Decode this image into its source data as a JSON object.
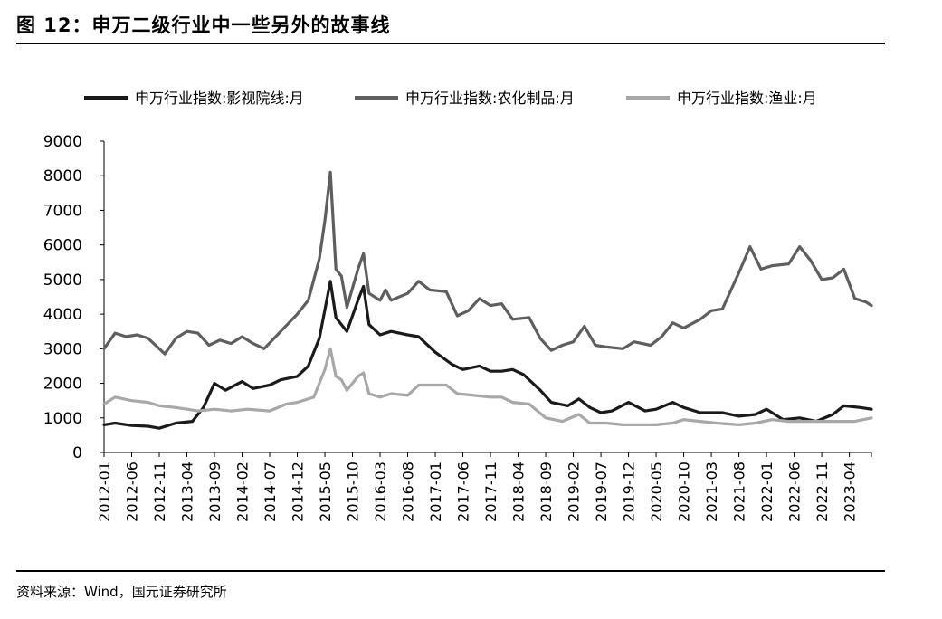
{
  "figure": {
    "title": "图 12：申万二级行业中一些另外的故事线",
    "source": "资料来源：Wind，国元证券研究所"
  },
  "chart_data": {
    "type": "line",
    "title": "",
    "xlabel": "",
    "ylabel": "",
    "ylim": [
      0,
      9000
    ],
    "yticks": [
      0,
      1000,
      2000,
      3000,
      4000,
      5000,
      6000,
      7000,
      8000,
      9000
    ],
    "x_start": "2012-01",
    "x_end": "2023-08",
    "xticks": [
      "2012-01",
      "2012-06",
      "2012-11",
      "2013-04",
      "2013-09",
      "2014-02",
      "2014-07",
      "2014-12",
      "2015-05",
      "2015-10",
      "2016-03",
      "2016-08",
      "2017-01",
      "2017-06",
      "2017-11",
      "2018-04",
      "2018-09",
      "2019-02",
      "2019-07",
      "2019-12",
      "2020-05",
      "2020-10",
      "2021-03",
      "2021-08",
      "2022-01",
      "2022-06",
      "2022-11",
      "2023-04"
    ],
    "grid": false,
    "legend": "top",
    "series": [
      {
        "name": "申万行业指数:影视院线:月",
        "color": "#1a1a1a",
        "points": [
          [
            "2012-01",
            800
          ],
          [
            "2012-03",
            850
          ],
          [
            "2012-06",
            780
          ],
          [
            "2012-09",
            760
          ],
          [
            "2012-11",
            700
          ],
          [
            "2013-02",
            850
          ],
          [
            "2013-05",
            900
          ],
          [
            "2013-07",
            1300
          ],
          [
            "2013-09",
            2000
          ],
          [
            "2013-11",
            1800
          ],
          [
            "2014-02",
            2050
          ],
          [
            "2014-04",
            1850
          ],
          [
            "2014-07",
            1950
          ],
          [
            "2014-09",
            2100
          ],
          [
            "2014-12",
            2200
          ],
          [
            "2015-02",
            2500
          ],
          [
            "2015-04",
            3300
          ],
          [
            "2015-06",
            4950
          ],
          [
            "2015-07",
            3900
          ],
          [
            "2015-08",
            3700
          ],
          [
            "2015-09",
            3500
          ],
          [
            "2015-11",
            4400
          ],
          [
            "2015-12",
            4800
          ],
          [
            "2016-01",
            3700
          ],
          [
            "2016-03",
            3400
          ],
          [
            "2016-05",
            3500
          ],
          [
            "2016-08",
            3400
          ],
          [
            "2016-10",
            3350
          ],
          [
            "2017-01",
            2900
          ],
          [
            "2017-04",
            2550
          ],
          [
            "2017-06",
            2400
          ],
          [
            "2017-09",
            2500
          ],
          [
            "2017-11",
            2350
          ],
          [
            "2018-01",
            2350
          ],
          [
            "2018-03",
            2400
          ],
          [
            "2018-05",
            2250
          ],
          [
            "2018-08",
            1800
          ],
          [
            "2018-10",
            1450
          ],
          [
            "2019-01",
            1350
          ],
          [
            "2019-03",
            1550
          ],
          [
            "2019-05",
            1300
          ],
          [
            "2019-07",
            1150
          ],
          [
            "2019-09",
            1200
          ],
          [
            "2019-12",
            1450
          ],
          [
            "2020-03",
            1200
          ],
          [
            "2020-05",
            1250
          ],
          [
            "2020-08",
            1450
          ],
          [
            "2020-10",
            1300
          ],
          [
            "2021-01",
            1150
          ],
          [
            "2021-05",
            1150
          ],
          [
            "2021-08",
            1050
          ],
          [
            "2021-11",
            1100
          ],
          [
            "2022-01",
            1250
          ],
          [
            "2022-04",
            950
          ],
          [
            "2022-07",
            1000
          ],
          [
            "2022-10",
            900
          ],
          [
            "2023-01",
            1100
          ],
          [
            "2023-03",
            1350
          ],
          [
            "2023-06",
            1300
          ],
          [
            "2023-08",
            1250
          ]
        ]
      },
      {
        "name": "申万行业指数:农化制品:月",
        "color": "#5e5e5e",
        "points": [
          [
            "2012-01",
            3000
          ],
          [
            "2012-03",
            3450
          ],
          [
            "2012-05",
            3350
          ],
          [
            "2012-07",
            3400
          ],
          [
            "2012-09",
            3300
          ],
          [
            "2012-12",
            2850
          ],
          [
            "2013-02",
            3300
          ],
          [
            "2013-04",
            3500
          ],
          [
            "2013-06",
            3450
          ],
          [
            "2013-08",
            3100
          ],
          [
            "2013-10",
            3250
          ],
          [
            "2013-12",
            3150
          ],
          [
            "2014-02",
            3350
          ],
          [
            "2014-04",
            3150
          ],
          [
            "2014-06",
            3000
          ],
          [
            "2014-09",
            3500
          ],
          [
            "2014-12",
            4000
          ],
          [
            "2015-02",
            4400
          ],
          [
            "2015-04",
            5600
          ],
          [
            "2015-05",
            6700
          ],
          [
            "2015-06",
            8100
          ],
          [
            "2015-07",
            5300
          ],
          [
            "2015-08",
            5100
          ],
          [
            "2015-09",
            4200
          ],
          [
            "2015-11",
            5300
          ],
          [
            "2015-12",
            5750
          ],
          [
            "2016-01",
            4600
          ],
          [
            "2016-03",
            4400
          ],
          [
            "2016-04",
            4700
          ],
          [
            "2016-05",
            4400
          ],
          [
            "2016-08",
            4600
          ],
          [
            "2016-10",
            4950
          ],
          [
            "2016-12",
            4700
          ],
          [
            "2017-03",
            4650
          ],
          [
            "2017-05",
            3950
          ],
          [
            "2017-07",
            4100
          ],
          [
            "2017-09",
            4450
          ],
          [
            "2017-11",
            4250
          ],
          [
            "2018-01",
            4300
          ],
          [
            "2018-03",
            3850
          ],
          [
            "2018-06",
            3900
          ],
          [
            "2018-08",
            3300
          ],
          [
            "2018-10",
            2950
          ],
          [
            "2018-12",
            3100
          ],
          [
            "2019-02",
            3200
          ],
          [
            "2019-04",
            3650
          ],
          [
            "2019-06",
            3100
          ],
          [
            "2019-08",
            3050
          ],
          [
            "2019-11",
            3000
          ],
          [
            "2020-01",
            3200
          ],
          [
            "2020-04",
            3100
          ],
          [
            "2020-06",
            3350
          ],
          [
            "2020-08",
            3750
          ],
          [
            "2020-10",
            3600
          ],
          [
            "2021-01",
            3850
          ],
          [
            "2021-03",
            4100
          ],
          [
            "2021-05",
            4150
          ],
          [
            "2021-08",
            5200
          ],
          [
            "2021-10",
            5950
          ],
          [
            "2021-12",
            5300
          ],
          [
            "2022-02",
            5400
          ],
          [
            "2022-05",
            5450
          ],
          [
            "2022-07",
            5950
          ],
          [
            "2022-09",
            5550
          ],
          [
            "2022-11",
            5000
          ],
          [
            "2023-01",
            5050
          ],
          [
            "2023-03",
            5300
          ],
          [
            "2023-05",
            4450
          ],
          [
            "2023-07",
            4350
          ],
          [
            "2023-08",
            4250
          ]
        ]
      },
      {
        "name": "申万行业指数:渔业:月",
        "color": "#a8a8a8",
        "points": [
          [
            "2012-01",
            1400
          ],
          [
            "2012-03",
            1600
          ],
          [
            "2012-06",
            1500
          ],
          [
            "2012-09",
            1450
          ],
          [
            "2012-11",
            1350
          ],
          [
            "2013-02",
            1300
          ],
          [
            "2013-06",
            1200
          ],
          [
            "2013-09",
            1250
          ],
          [
            "2013-12",
            1200
          ],
          [
            "2014-03",
            1250
          ],
          [
            "2014-07",
            1200
          ],
          [
            "2014-10",
            1400
          ],
          [
            "2014-12",
            1450
          ],
          [
            "2015-03",
            1600
          ],
          [
            "2015-05",
            2400
          ],
          [
            "2015-06",
            3000
          ],
          [
            "2015-07",
            2200
          ],
          [
            "2015-08",
            2100
          ],
          [
            "2015-09",
            1800
          ],
          [
            "2015-11",
            2200
          ],
          [
            "2015-12",
            2300
          ],
          [
            "2016-01",
            1700
          ],
          [
            "2016-03",
            1600
          ],
          [
            "2016-05",
            1700
          ],
          [
            "2016-08",
            1650
          ],
          [
            "2016-10",
            1950
          ],
          [
            "2017-01",
            1950
          ],
          [
            "2017-03",
            1950
          ],
          [
            "2017-05",
            1700
          ],
          [
            "2017-08",
            1650
          ],
          [
            "2017-11",
            1600
          ],
          [
            "2018-01",
            1600
          ],
          [
            "2018-03",
            1450
          ],
          [
            "2018-06",
            1400
          ],
          [
            "2018-09",
            1000
          ],
          [
            "2018-12",
            900
          ],
          [
            "2019-03",
            1100
          ],
          [
            "2019-05",
            850
          ],
          [
            "2019-08",
            850
          ],
          [
            "2019-11",
            800
          ],
          [
            "2020-02",
            800
          ],
          [
            "2020-05",
            800
          ],
          [
            "2020-08",
            850
          ],
          [
            "2020-10",
            950
          ],
          [
            "2021-01",
            900
          ],
          [
            "2021-04",
            850
          ],
          [
            "2021-08",
            800
          ],
          [
            "2021-11",
            850
          ],
          [
            "2022-02",
            950
          ],
          [
            "2022-05",
            900
          ],
          [
            "2022-08",
            900
          ],
          [
            "2022-11",
            900
          ],
          [
            "2023-02",
            900
          ],
          [
            "2023-05",
            900
          ],
          [
            "2023-08",
            1000
          ]
        ]
      }
    ]
  }
}
